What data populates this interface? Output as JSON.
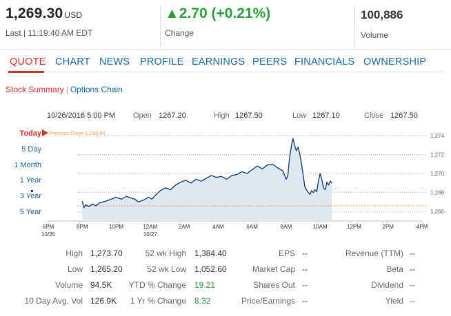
{
  "quote": {
    "price": "1,269.30",
    "currency": "USD",
    "last_time": "Last | 11:19:40 AM EDT",
    "change_arrow": "▲",
    "change": "2.70 (+0.21%)",
    "change_label": "Change",
    "volume": "100,886",
    "volume_label": "Volume"
  },
  "nav": {
    "tabs": [
      "QUOTE",
      "CHART",
      "NEWS",
      "PROFILE",
      "EARNINGS",
      "PEERS",
      "FINANCIALS",
      "OWNERSHIP"
    ],
    "active": "QUOTE"
  },
  "subnav": {
    "stock_summary": "Stock Summary",
    "separator": "|",
    "options_chain": "Options Chain"
  },
  "session": {
    "date": "10/26/2016 5:00 PM",
    "open_label": "Open",
    "open": "1267.20",
    "high_label": "High",
    "high": "1267.50",
    "low_label": "Low",
    "low": "1267.10",
    "close_label": "Close",
    "close": "1267.50"
  },
  "ranges": [
    "Today",
    "5 Day",
    "1 Month",
    "1 Year",
    "3 Year",
    "5 Year"
  ],
  "active_range": "Today",
  "chart_data": {
    "type": "area",
    "previous_close_label": "Previous Close 1,266.60",
    "previous_close": 1266.6,
    "ylim": [
      1265,
      1274.8
    ],
    "y_ticks": [
      1266,
      1268,
      1270,
      1272,
      1274
    ],
    "y_tick_labels": [
      "1,266",
      "1,268",
      "1,270",
      "1,272",
      "1,274"
    ],
    "x_ticks": [
      {
        "label": "6PM",
        "sub": "10/26",
        "t": 18
      },
      {
        "label": "8PM",
        "sub": "",
        "t": 20
      },
      {
        "label": "10PM",
        "sub": "",
        "t": 22
      },
      {
        "label": "12AM",
        "sub": "10/27",
        "t": 24
      },
      {
        "label": "2AM",
        "sub": "",
        "t": 26
      },
      {
        "label": "4AM",
        "sub": "",
        "t": 28
      },
      {
        "label": "6AM",
        "sub": "",
        "t": 30
      },
      {
        "label": "8AM",
        "sub": "",
        "t": 32
      },
      {
        "label": "10AM",
        "sub": "",
        "t": 34
      },
      {
        "label": "12PM",
        "sub": "",
        "t": 36
      },
      {
        "label": "2PM",
        "sub": "",
        "t": 38
      },
      {
        "label": "4PM",
        "sub": "",
        "t": 40
      }
    ],
    "xlim": [
      18,
      40
    ],
    "grid": true,
    "series": [
      {
        "x": [
          20.0,
          20.1,
          20.2,
          20.4,
          20.6,
          20.8,
          21.0,
          21.2,
          21.4,
          21.7,
          22.0,
          22.3,
          22.6,
          22.9,
          23.1,
          23.3,
          23.6,
          23.9,
          24.1,
          24.3,
          24.6,
          24.9,
          25.2,
          25.5,
          25.8,
          26.1,
          26.4,
          26.7,
          27.0,
          27.3,
          27.6,
          27.9,
          28.2,
          28.5,
          28.8,
          29.1,
          29.4,
          29.7,
          30.0,
          30.3,
          30.6,
          30.9,
          31.2,
          31.5,
          31.8,
          32.0,
          32.1,
          32.2,
          32.3,
          32.4,
          32.5,
          32.6,
          32.7,
          32.8,
          32.9,
          33.0,
          33.1,
          33.2,
          33.3,
          33.4,
          33.5,
          33.6,
          33.7,
          33.8,
          33.9,
          34.0,
          34.1,
          34.2,
          34.3,
          34.4,
          34.5,
          34.6,
          34.7
        ],
        "y": [
          1267.1,
          1266.4,
          1266.7,
          1266.5,
          1266.8,
          1266.6,
          1266.9,
          1267.0,
          1267.1,
          1267.3,
          1267.5,
          1267.3,
          1267.6,
          1267.4,
          1267.3,
          1267.0,
          1267.2,
          1267.5,
          1267.3,
          1267.7,
          1268.2,
          1268.5,
          1268.3,
          1268.8,
          1269.1,
          1269.3,
          1269.0,
          1269.4,
          1269.2,
          1269.5,
          1269.8,
          1269.6,
          1269.7,
          1269.4,
          1269.8,
          1269.9,
          1270.2,
          1270.0,
          1270.4,
          1270.8,
          1270.5,
          1270.9,
          1271.0,
          1270.6,
          1270.3,
          1269.4,
          1269.8,
          1271.6,
          1272.8,
          1273.7,
          1273.0,
          1272.4,
          1272.8,
          1272.1,
          1271.1,
          1269.9,
          1268.6,
          1268.3,
          1268.0,
          1267.8,
          1268.2,
          1268.0,
          1268.3,
          1268.1,
          1269.2,
          1270.0,
          1269.4,
          1268.5,
          1268.3,
          1269.1,
          1268.8,
          1269.2,
          1269.0
        ]
      }
    ]
  },
  "stats": {
    "col1": [
      {
        "label": "High",
        "value": "1,273.70"
      },
      {
        "label": "Low",
        "value": "1,265.20"
      },
      {
        "label": "Volume",
        "value": "94.5K"
      },
      {
        "label": "10 Day Avg. Vol",
        "value": "126.9K"
      }
    ],
    "col2": [
      {
        "label": "52 wk High",
        "value": "1,384.40"
      },
      {
        "label": "52 wk Low",
        "value": "1,052.60"
      },
      {
        "label": "YTD % Change",
        "value": "19.21"
      },
      {
        "label": "1 Yr % Change",
        "value": "8.32"
      }
    ],
    "col3": [
      {
        "label": "EPS",
        "value": "--"
      },
      {
        "label": "Market Cap",
        "value": "--"
      },
      {
        "label": "Shares Out",
        "value": "--"
      },
      {
        "label": "Price/Earnings",
        "value": "--"
      }
    ],
    "col4": [
      {
        "label": "Revenue (TTM)",
        "value": "--"
      },
      {
        "label": "Beta",
        "value": "--"
      },
      {
        "label": "Dividend",
        "value": "--"
      },
      {
        "label": "Yield",
        "value": "--"
      }
    ]
  },
  "colors": {
    "positive": "#2f9c3e",
    "link": "#1a67a3",
    "active": "#d93025",
    "line": "#1f3f7a",
    "area": "#dde8f1",
    "prev_close": "#e8a23a"
  }
}
